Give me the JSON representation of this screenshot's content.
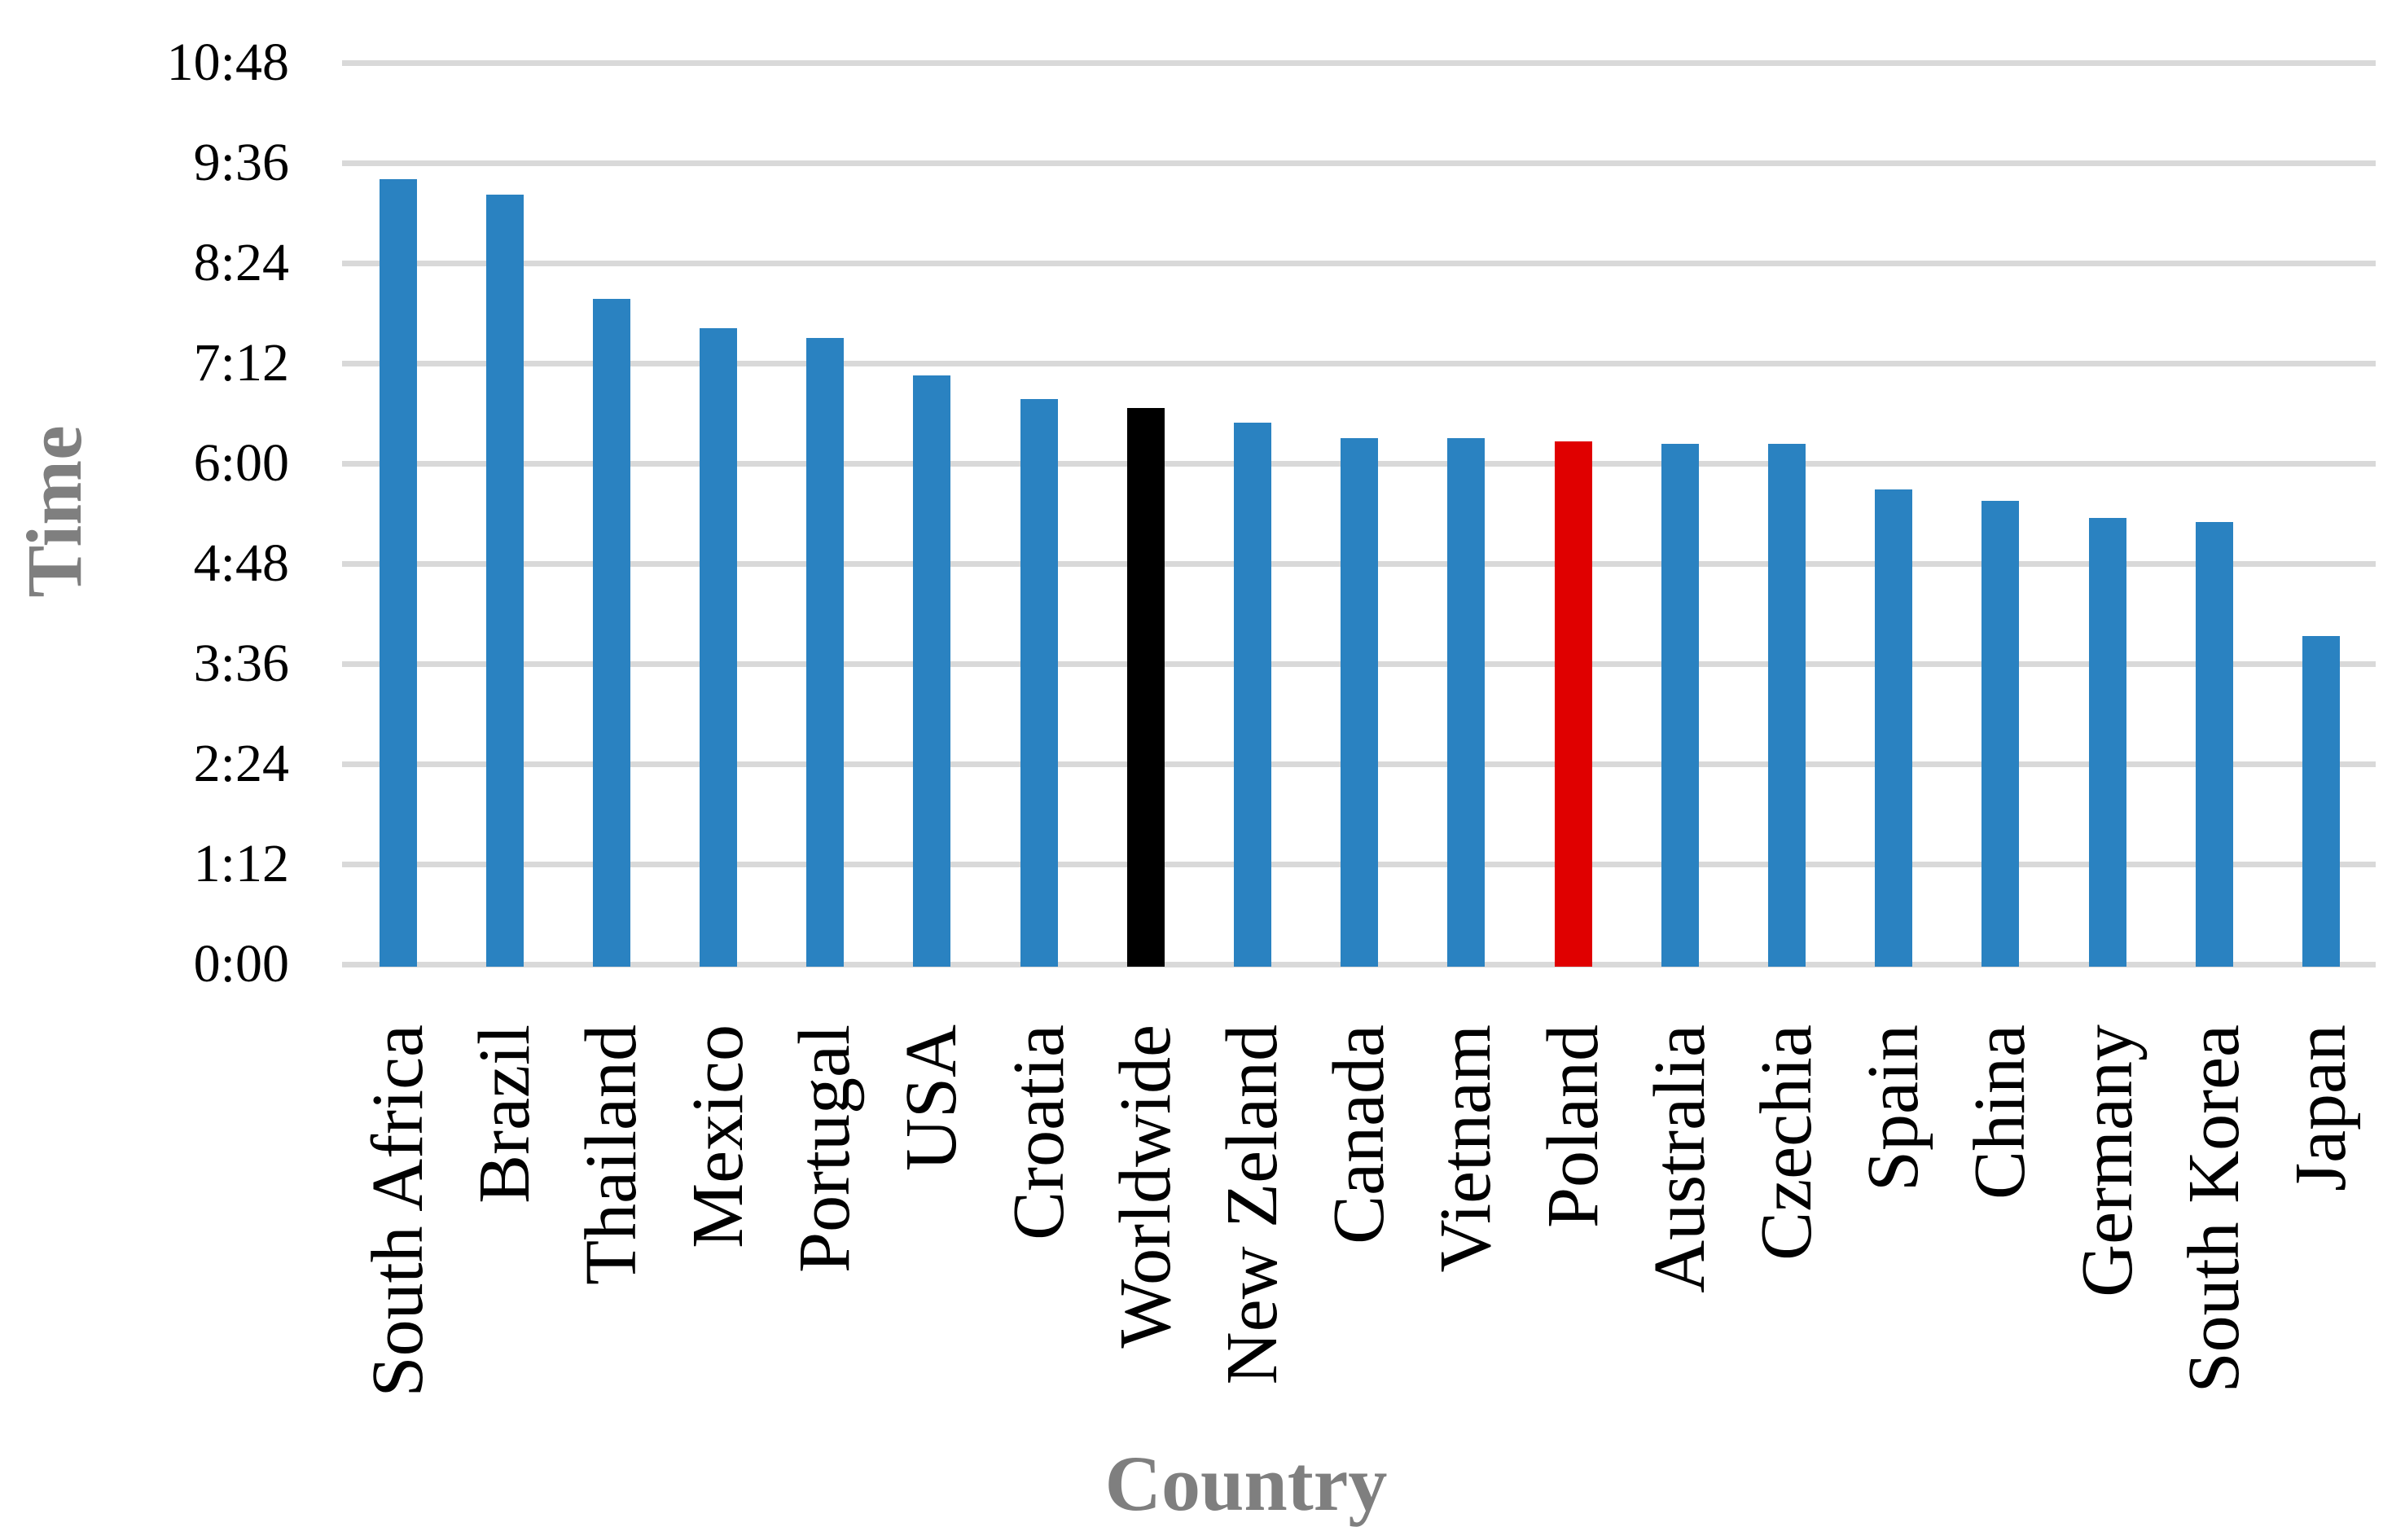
{
  "chart_data": {
    "type": "bar",
    "title": "",
    "xlabel": "Country",
    "ylabel": "Time",
    "categories": [
      "South Africa",
      "Brazil",
      "Thailand",
      "Mexico",
      "Portugal",
      "USA",
      "Croatia",
      "Worldwide",
      "New Zeland",
      "Canada",
      "Vietnam",
      "Poland",
      "Australia",
      "Czechia",
      "Spain",
      "China",
      "Germany",
      "South Korea",
      "Japan"
    ],
    "series": [
      {
        "label": "South Africa",
        "time": "9:24",
        "minutes": 564,
        "color": "#2A82C1"
      },
      {
        "label": "Brazil",
        "time": "9:13",
        "minutes": 553,
        "color": "#2A82C1"
      },
      {
        "label": "Thailand",
        "time": "7:58",
        "minutes": 478,
        "color": "#2A82C1"
      },
      {
        "label": "Mexico",
        "time": "7:37",
        "minutes": 457,
        "color": "#2A82C1"
      },
      {
        "label": "Portugal",
        "time": "7:30",
        "minutes": 450,
        "color": "#2A82C1"
      },
      {
        "label": "USA",
        "time": "7:03",
        "minutes": 423,
        "color": "#2A82C1"
      },
      {
        "label": "Croatia",
        "time": "6:46",
        "minutes": 406,
        "color": "#2A82C1"
      },
      {
        "label": "Worldwide",
        "time": "6:40",
        "minutes": 400,
        "color": "#000000"
      },
      {
        "label": "New Zeland",
        "time": "6:29",
        "minutes": 389,
        "color": "#2A82C1"
      },
      {
        "label": "Canada",
        "time": "6:18",
        "minutes": 378,
        "color": "#2A82C1"
      },
      {
        "label": "Vietnam",
        "time": "6:18",
        "minutes": 378,
        "color": "#2A82C1"
      },
      {
        "label": "Poland",
        "time": "6:16",
        "minutes": 376,
        "color": "#E00000"
      },
      {
        "label": "Australia",
        "time": "6:14",
        "minutes": 374,
        "color": "#2A82C1"
      },
      {
        "label": "Czechia",
        "time": "6:14",
        "minutes": 374,
        "color": "#2A82C1"
      },
      {
        "label": "Spain",
        "time": "5:41",
        "minutes": 341,
        "color": "#2A82C1"
      },
      {
        "label": "China",
        "time": "5:33",
        "minutes": 333,
        "color": "#2A82C1"
      },
      {
        "label": "Germany",
        "time": "5:21",
        "minutes": 321,
        "color": "#2A82C1"
      },
      {
        "label": "South Korea",
        "time": "5:18",
        "minutes": 318,
        "color": "#2A82C1"
      },
      {
        "label": "Japan",
        "time": "3:56",
        "minutes": 236,
        "color": "#2A82C1"
      }
    ],
    "y_ticks": [
      "0:00",
      "1:12",
      "2:24",
      "3:36",
      "4:48",
      "6:00",
      "7:12",
      "8:24",
      "9:36",
      "10:48"
    ],
    "y_tick_interval_minutes": 72,
    "ylim_minutes": [
      0,
      648
    ],
    "grid": true,
    "legend": "none",
    "highlight": {
      "Worldwide": "#000000",
      "Poland": "#E00000"
    },
    "colors": {
      "bar_default": "#2A82C1",
      "bar_worldwide": "#000000",
      "bar_poland": "#E00000",
      "gridline": "#D9D9D9",
      "axis_title": "#7F7F7F",
      "tick_label": "#000000",
      "background": "#FFFFFF"
    }
  }
}
